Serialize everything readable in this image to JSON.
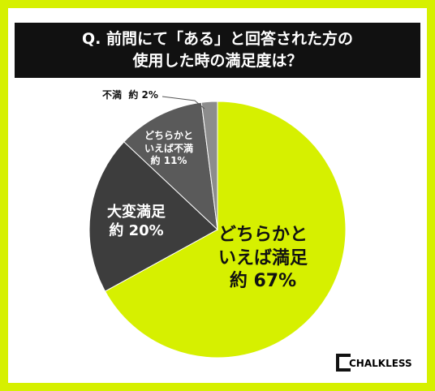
{
  "chart_data": {
    "type": "pie",
    "title": [
      "Q. 前問にて「ある」と回答された方の",
      "使用した時の満足度は？"
    ],
    "categories": [
      "どちらかといえば満足",
      "大変満足",
      "どちらかといえば不満",
      "不満"
    ],
    "values": [
      67,
      20,
      11,
      2
    ],
    "value_labels": [
      "約 67%",
      "約 20%",
      "約 11%",
      "約 2%"
    ],
    "colors": [
      "#d6f000",
      "#3d3d3d",
      "#5a5a5a",
      "#8c8c8c"
    ],
    "brand": "CHALKLESS"
  }
}
